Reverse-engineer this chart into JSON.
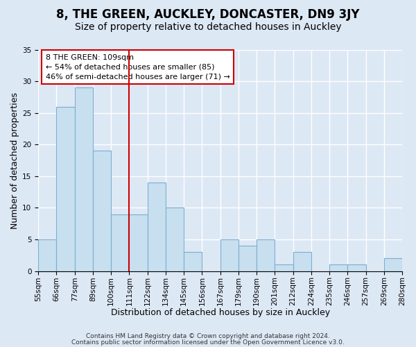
{
  "title": "8, THE GREEN, AUCKLEY, DONCASTER, DN9 3JY",
  "subtitle": "Size of property relative to detached houses in Auckley",
  "xlabel": "Distribution of detached houses by size in Auckley",
  "ylabel": "Number of detached properties",
  "bar_color": "#c8dff0",
  "bar_edge_color": "#7aaed0",
  "bin_edges": [
    55,
    66,
    77,
    89,
    100,
    111,
    122,
    134,
    145,
    156,
    167,
    179,
    190,
    201,
    212,
    224,
    235,
    246,
    257,
    269,
    280
  ],
  "bin_labels": [
    "55sqm",
    "66sqm",
    "77sqm",
    "89sqm",
    "100sqm",
    "111sqm",
    "122sqm",
    "134sqm",
    "145sqm",
    "156sqm",
    "167sqm",
    "179sqm",
    "190sqm",
    "201sqm",
    "212sqm",
    "224sqm",
    "235sqm",
    "246sqm",
    "257sqm",
    "269sqm",
    "280sqm"
  ],
  "values": [
    5,
    26,
    29,
    19,
    9,
    9,
    14,
    10,
    3,
    0,
    5,
    4,
    5,
    1,
    3,
    0,
    1,
    1,
    0,
    2
  ],
  "ylim": [
    0,
    35
  ],
  "yticks": [
    0,
    5,
    10,
    15,
    20,
    25,
    30,
    35
  ],
  "vline_at_bin_edge": 5,
  "vline_color": "#cc0000",
  "annotation_line1": "8 THE GREEN: 109sqm",
  "annotation_line2": "← 54% of detached houses are smaller (85)",
  "annotation_line3": "46% of semi-detached houses are larger (71) →",
  "annotation_box_color": "#ffffff",
  "annotation_box_edge": "#cc0000",
  "footer_line1": "Contains HM Land Registry data © Crown copyright and database right 2024.",
  "footer_line2": "Contains public sector information licensed under the Open Government Licence v3.0.",
  "background_color": "#dde8f5",
  "plot_background": "#dde8f5",
  "grid_color": "#ffffff",
  "title_fontsize": 12,
  "subtitle_fontsize": 10,
  "axis_fontsize": 9,
  "tick_fontsize": 7.5,
  "footer_fontsize": 6.5
}
